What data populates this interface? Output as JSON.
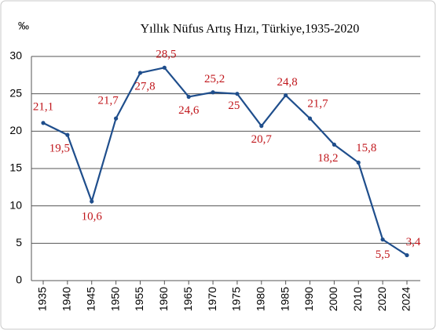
{
  "chart_data": {
    "type": "line",
    "title": "Yıllık Nüfus Artış Hızı, Türkiye,1935-2020",
    "y_label": "‰",
    "categories": [
      "1935",
      "1940",
      "1945",
      "1950",
      "1955",
      "1960",
      "1965",
      "1970",
      "1975",
      "1980",
      "1985",
      "1990",
      "2000",
      "2010",
      "2020",
      "2024"
    ],
    "series": [
      {
        "name": "Yıllık Nüfus Artış Hızı",
        "color": "#1f4e8c",
        "values": [
          21.1,
          19.5,
          10.6,
          21.7,
          27.8,
          28.5,
          24.6,
          25.2,
          25,
          20.7,
          24.8,
          21.7,
          18.2,
          15.8,
          5.5,
          3.4
        ],
        "value_labels": [
          "21,1",
          "19,5",
          "10,6",
          "21,7",
          "27,8",
          "28,5",
          "24,6",
          "25,2",
          "25",
          "20,7",
          "24,8",
          "21,7",
          "18,2",
          "15,8",
          "5,5",
          "3,4"
        ]
      }
    ],
    "ylim": [
      0,
      30
    ],
    "yticks": [
      0,
      5,
      10,
      15,
      20,
      25,
      30
    ],
    "grid": true
  }
}
